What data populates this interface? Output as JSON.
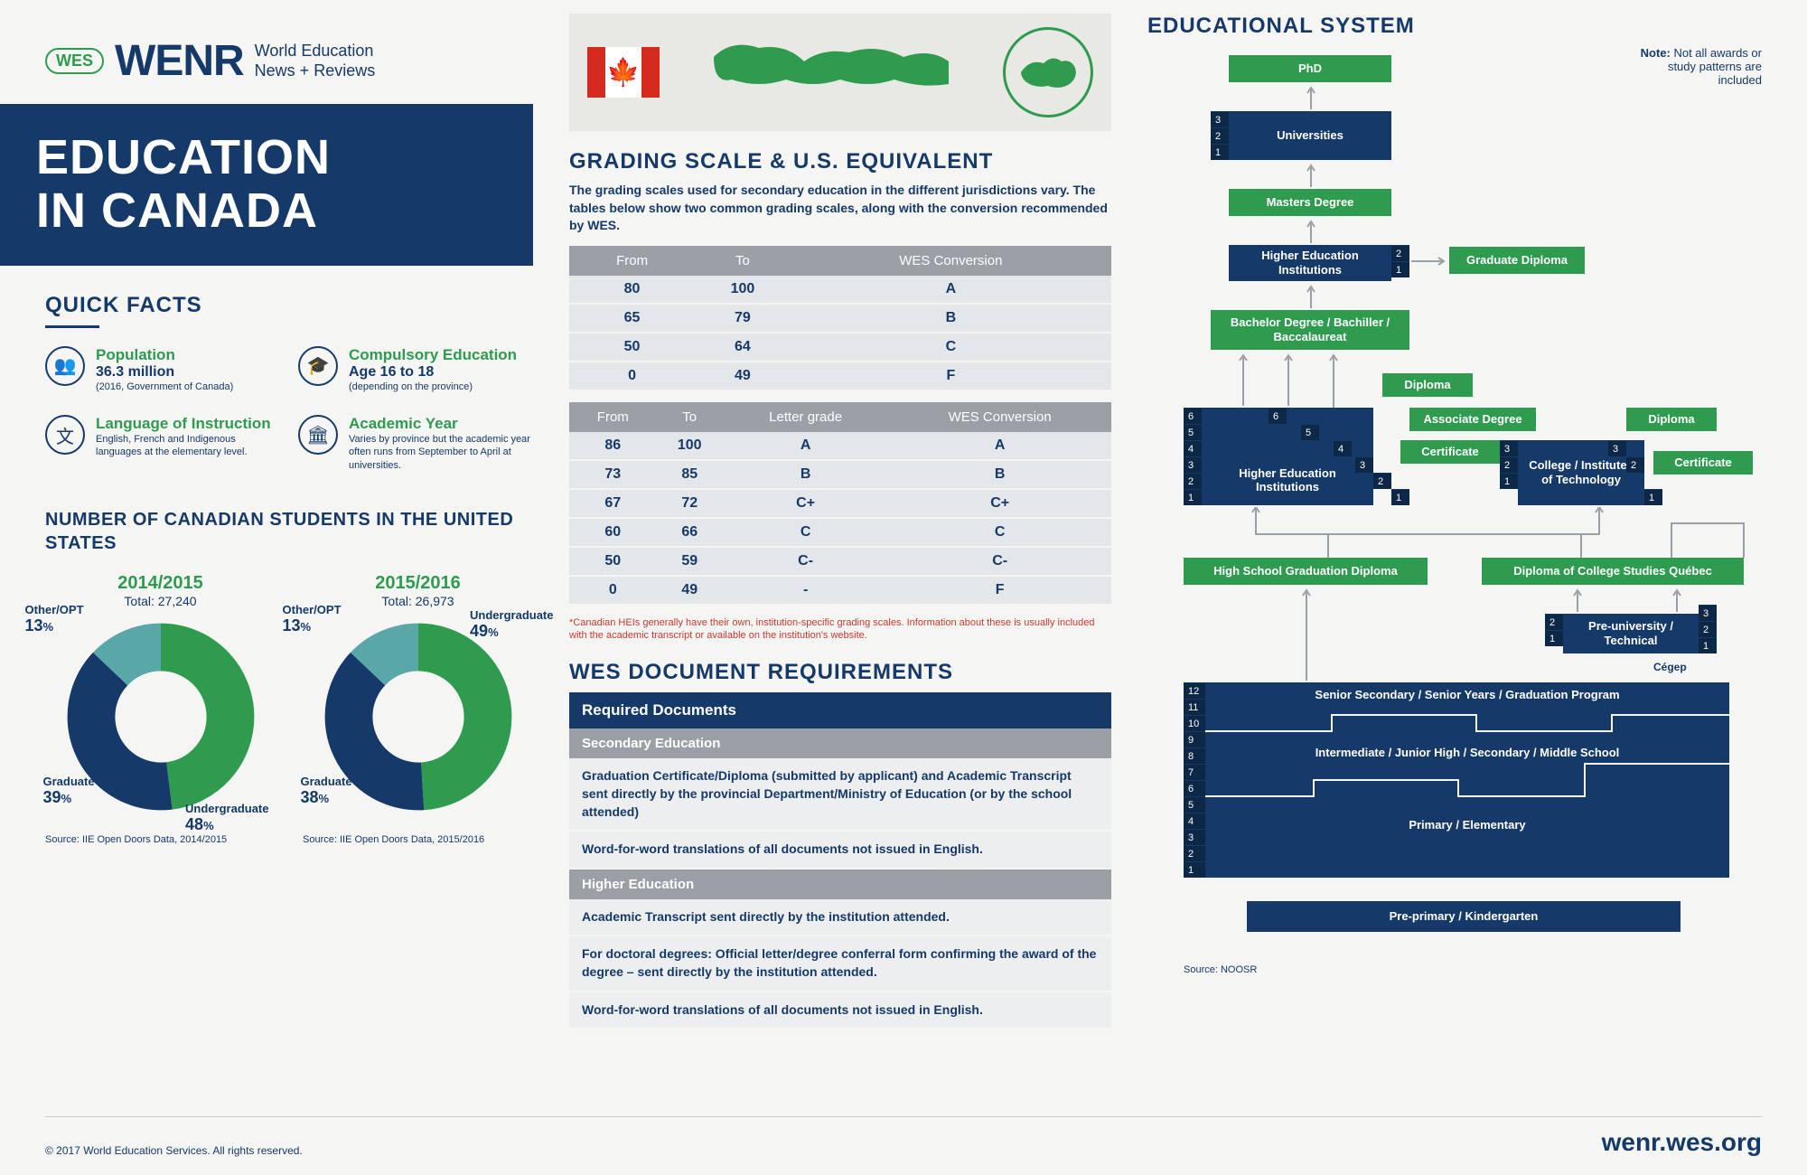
{
  "header": {
    "badge": "WES",
    "logo": "WENR",
    "sub1": "World Education",
    "sub2": "News + Reviews"
  },
  "title": {
    "line1": "EDUCATION",
    "line2": "IN CANADA"
  },
  "quick_facts": {
    "title": "QUICK FACTS",
    "items": [
      {
        "label": "Population",
        "value": "36.3 million",
        "note": "(2016, Government of Canada)"
      },
      {
        "label": "Compulsory Education",
        "value": "Age 16 to 18",
        "note": "(depending on the province)"
      },
      {
        "label": "Language of Instruction",
        "value": "",
        "note": "English, French and Indigenous languages at the elementary level."
      },
      {
        "label": "Academic Year",
        "value": "",
        "note": "Varies by province but the academic year often runs from September to April at universities."
      }
    ]
  },
  "students": {
    "title": "NUMBER OF CANADIAN STUDENTS IN THE UNITED STATES",
    "years": [
      {
        "year": "2014/2015",
        "total": "Total: 27,240",
        "segments": [
          {
            "label": "Undergraduate",
            "pct": 48,
            "color": "#2e9b4f"
          },
          {
            "label": "Graduate",
            "pct": 39,
            "color": "#153968"
          },
          {
            "label": "Other/OPT",
            "pct": 13,
            "color": "#5aa7a7"
          }
        ],
        "source": "Source: IIE Open Doors Data, 2014/2015"
      },
      {
        "year": "2015/2016",
        "total": "Total: 26,973",
        "segments": [
          {
            "label": "Undergraduate",
            "pct": 49,
            "color": "#2e9b4f"
          },
          {
            "label": "Graduate",
            "pct": 38,
            "color": "#153968"
          },
          {
            "label": "Other/OPT",
            "pct": 13,
            "color": "#5aa7a7"
          }
        ],
        "source": "Source: IIE Open Doors Data, 2015/2016"
      }
    ]
  },
  "grading": {
    "title": "GRADING SCALE & U.S. EQUIVALENT",
    "desc": "The grading scales used for secondary education in the different jurisdictions vary. The tables below show two common grading scales, along with the conversion recommended by WES.",
    "table1": {
      "headers": [
        "From",
        "To",
        "WES Conversion"
      ],
      "rows": [
        [
          "80",
          "100",
          "A"
        ],
        [
          "65",
          "79",
          "B"
        ],
        [
          "50",
          "64",
          "C"
        ],
        [
          "0",
          "49",
          "F"
        ]
      ]
    },
    "table2": {
      "headers": [
        "From",
        "To",
        "Letter grade",
        "WES Conversion"
      ],
      "rows": [
        [
          "86",
          "100",
          "A",
          "A"
        ],
        [
          "73",
          "85",
          "B",
          "B"
        ],
        [
          "67",
          "72",
          "C+",
          "C+"
        ],
        [
          "60",
          "66",
          "C",
          "C"
        ],
        [
          "50",
          "59",
          "C-",
          "C-"
        ],
        [
          "0",
          "49",
          "-",
          "F"
        ]
      ]
    },
    "note": "*Canadian HEIs generally have their own, institution-specific grading scales. Information about these is usually included with the academic transcript or available on the institution's website."
  },
  "docs": {
    "title": "WES DOCUMENT REQUIREMENTS",
    "header": "Required Documents",
    "sections": [
      {
        "sub": "Secondary Education",
        "rows": [
          "Graduation Certificate/Diploma (submitted by applicant) and Academic Transcript sent directly by the provincial Department/Ministry of Education (or by the school attended)",
          "Word-for-word translations of all documents not issued in English."
        ]
      },
      {
        "sub": "Higher Education",
        "rows": [
          "Academic Transcript sent directly by the institution attended.",
          "For doctoral degrees: Official letter/degree conferral form confirming the award of the degree – sent directly by the institution attended.",
          "Word-for-word translations of all documents not issued in English."
        ]
      }
    ]
  },
  "edu": {
    "title": "EDUCATIONAL SYSTEM",
    "note_bold": "Note:",
    "note": " Not all awards or study patterns are included",
    "boxes": {
      "phd": "PhD",
      "universities": "Universities",
      "masters": "Masters Degree",
      "hei2": "Higher Education Institutions",
      "grad_diploma": "Graduate Diploma",
      "bachelor": "Bachelor Degree / Bachiller / Baccalaureat",
      "diploma1": "Diploma",
      "associate": "Associate Degree",
      "certificate1": "Certificate",
      "diploma2": "Diploma",
      "certificate2": "Certificate",
      "hei6": "Higher Education Institutions",
      "college": "College / Institutes of Technology",
      "hs_diploma": "High School Graduation Diploma",
      "college_quebec": "Diploma of College Studies Québec",
      "preuni": "Pre-university / Technical",
      "cegep": "Cégep",
      "senior": "Senior Secondary / Senior Years / Graduation Program",
      "middle": "Intermediate / Junior High / Secondary / Middle School",
      "primary": "Primary / Elementary",
      "prekinder": "Pre-primary / Kindergarten"
    },
    "source": "Source: NOOSR"
  },
  "footer": {
    "copyright": "© 2017 World Education Services. All rights reserved.",
    "url": "wenr.wes.org"
  },
  "colors": {
    "navy": "#153968",
    "green": "#2e9b4f",
    "grey": "#9aa0a6",
    "teal": "#5aa7a7"
  }
}
